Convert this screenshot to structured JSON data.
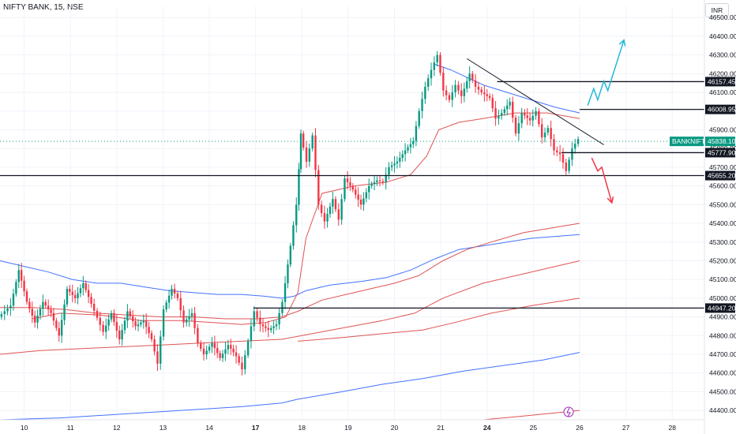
{
  "header": {
    "title": "NIFTY BANK, 15, NSE",
    "currency": "INR"
  },
  "chart_data": {
    "type": "candlestick",
    "symbol": "BANKNIFTY",
    "ylim": [
      44350,
      46560
    ],
    "yticks": [
      44400,
      44500,
      44600,
      44700,
      44800,
      44900,
      45000,
      45100,
      45200,
      45300,
      45400,
      45500,
      45600,
      45700,
      45800,
      45900,
      46000,
      46100,
      46200,
      46300,
      46400,
      46500
    ],
    "ytick_labels": [
      "44400.00",
      "44500.00",
      "44600.00",
      "44700.00",
      "44800.00",
      "44900.00",
      "45000.00",
      "45100.00",
      "45200.00",
      "45300.00",
      "45400.00",
      "45500.00",
      "45600.00",
      "45700.00",
      "45800.00",
      "45900.00",
      "46000.00",
      "46100.00",
      "46200.00",
      "46300.00",
      "46400.00",
      "46500.00"
    ],
    "xlim": [
      0,
      17.5
    ],
    "xticks": [
      {
        "pos": 0.6,
        "label": "10"
      },
      {
        "pos": 1.75,
        "label": "11"
      },
      {
        "pos": 2.9,
        "label": "12"
      },
      {
        "pos": 4.05,
        "label": "13"
      },
      {
        "pos": 5.2,
        "label": "14"
      },
      {
        "pos": 6.35,
        "label": "17",
        "bold": true
      },
      {
        "pos": 7.5,
        "label": "18"
      },
      {
        "pos": 8.65,
        "label": "19"
      },
      {
        "pos": 9.8,
        "label": "20"
      },
      {
        "pos": 10.95,
        "label": "21"
      },
      {
        "pos": 12.1,
        "label": "24",
        "bold": true
      },
      {
        "pos": 13.25,
        "label": "25"
      },
      {
        "pos": 14.4,
        "label": "26"
      },
      {
        "pos": 15.55,
        "label": "27"
      },
      {
        "pos": 16.7,
        "label": "28"
      }
    ],
    "price_segments": [
      [
        0.0,
        44900
      ],
      [
        0.3,
        44960
      ],
      [
        0.5,
        45150
      ],
      [
        0.7,
        44980
      ],
      [
        0.9,
        44870
      ],
      [
        1.1,
        44980
      ],
      [
        1.3,
        44920
      ],
      [
        1.5,
        44800
      ],
      [
        1.7,
        45050
      ],
      [
        1.9,
        45000
      ],
      [
        2.1,
        45080
      ],
      [
        2.3,
        44970
      ],
      [
        2.6,
        44820
      ],
      [
        2.8,
        44920
      ],
      [
        3.0,
        44780
      ],
      [
        3.2,
        44930
      ],
      [
        3.4,
        44850
      ],
      [
        3.6,
        44880
      ],
      [
        3.8,
        44780
      ],
      [
        3.95,
        44650
      ],
      [
        4.1,
        44940
      ],
      [
        4.3,
        45050
      ],
      [
        4.45,
        45000
      ],
      [
        4.6,
        44870
      ],
      [
        4.8,
        44920
      ],
      [
        4.95,
        44760
      ],
      [
        5.1,
        44700
      ],
      [
        5.3,
        44760
      ],
      [
        5.5,
        44680
      ],
      [
        5.7,
        44750
      ],
      [
        5.9,
        44690
      ],
      [
        6.05,
        44620
      ],
      [
        6.2,
        44770
      ],
      [
        6.35,
        44930
      ],
      [
        6.5,
        44860
      ],
      [
        6.7,
        44830
      ],
      [
        6.9,
        44860
      ],
      [
        7.05,
        44980
      ],
      [
        7.25,
        45280
      ],
      [
        7.4,
        45500
      ],
      [
        7.5,
        45880
      ],
      [
        7.65,
        45730
      ],
      [
        7.8,
        45870
      ],
      [
        7.95,
        45500
      ],
      [
        8.1,
        45410
      ],
      [
        8.3,
        45530
      ],
      [
        8.45,
        45420
      ],
      [
        8.6,
        45640
      ],
      [
        8.8,
        45580
      ],
      [
        9.0,
        45500
      ],
      [
        9.2,
        45600
      ],
      [
        9.4,
        45630
      ],
      [
        9.55,
        45620
      ],
      [
        9.7,
        45700
      ],
      [
        9.9,
        45730
      ],
      [
        10.1,
        45790
      ],
      [
        10.3,
        45840
      ],
      [
        10.45,
        46000
      ],
      [
        10.6,
        46130
      ],
      [
        10.75,
        46220
      ],
      [
        10.9,
        46300
      ],
      [
        11.05,
        46110
      ],
      [
        11.2,
        46060
      ],
      [
        11.35,
        46140
      ],
      [
        11.5,
        46080
      ],
      [
        11.7,
        46200
      ],
      [
        11.85,
        46130
      ],
      [
        12.0,
        46100
      ],
      [
        12.2,
        46070
      ],
      [
        12.35,
        45960
      ],
      [
        12.5,
        45990
      ],
      [
        12.7,
        46050
      ],
      [
        12.85,
        45880
      ],
      [
        13.0,
        45990
      ],
      [
        13.2,
        45950
      ],
      [
        13.35,
        46000
      ],
      [
        13.5,
        45860
      ],
      [
        13.65,
        45910
      ],
      [
        13.8,
        45790
      ],
      [
        13.95,
        45770
      ],
      [
        14.1,
        45680
      ],
      [
        14.25,
        45800
      ],
      [
        14.4,
        45850
      ]
    ],
    "lines": [
      {
        "name": "",
        "color": "#4472ff",
        "points": [
          [
            0,
            45200
          ],
          [
            0.6,
            45170
          ],
          [
            1.2,
            45140
          ],
          [
            1.8,
            45100
          ],
          [
            2.4,
            45080
          ],
          [
            3.0,
            45080
          ],
          [
            3.6,
            45060
          ],
          [
            4.2,
            45040
          ],
          [
            4.8,
            45030
          ],
          [
            5.4,
            45020
          ],
          [
            6.0,
            45020
          ],
          [
            6.6,
            45010
          ],
          [
            7.0,
            45000
          ],
          [
            7.3,
            45010
          ],
          [
            7.6,
            45040
          ],
          [
            8.2,
            45070
          ],
          [
            9.0,
            45090
          ],
          [
            9.6,
            45110
          ],
          [
            10.2,
            45150
          ],
          [
            10.8,
            45210
          ],
          [
            11.4,
            45260
          ],
          [
            12.0,
            45280
          ],
          [
            12.6,
            45300
          ],
          [
            13.2,
            45320
          ],
          [
            14.4,
            45340
          ]
        ]
      },
      {
        "name": "",
        "color": "#e05353",
        "points": [
          [
            0,
            44950
          ],
          [
            0.8,
            44950
          ],
          [
            1.6,
            44940
          ],
          [
            2.4,
            44920
          ],
          [
            3.2,
            44910
          ],
          [
            4.0,
            44900
          ],
          [
            4.8,
            44900
          ],
          [
            5.6,
            44890
          ],
          [
            6.4,
            44890
          ],
          [
            7.0,
            44900
          ],
          [
            7.4,
            44930
          ],
          [
            8.0,
            44990
          ],
          [
            9.0,
            45040
          ],
          [
            9.8,
            45080
          ],
          [
            10.4,
            45120
          ],
          [
            11.0,
            45200
          ],
          [
            11.6,
            45260
          ],
          [
            12.2,
            45300
          ],
          [
            13.0,
            45350
          ],
          [
            14.4,
            45400
          ]
        ]
      },
      {
        "name": "",
        "color": "#e05353",
        "points": [
          [
            0,
            44700
          ],
          [
            1.0,
            44720
          ],
          [
            2.0,
            44730
          ],
          [
            3.0,
            44740
          ],
          [
            4.0,
            44750
          ],
          [
            5.0,
            44760
          ],
          [
            6.0,
            44770
          ],
          [
            7.0,
            44780
          ],
          [
            7.5,
            44800
          ],
          [
            8.5,
            44840
          ],
          [
            9.5,
            44880
          ],
          [
            10.3,
            44920
          ],
          [
            11.0,
            45000
          ],
          [
            12.0,
            45080
          ],
          [
            13.0,
            45130
          ],
          [
            14.4,
            45200
          ]
        ]
      },
      {
        "name": "",
        "color": "#e05353",
        "points": [
          [
            7.4,
            44770
          ],
          [
            8.5,
            44790
          ],
          [
            9.5,
            44810
          ],
          [
            10.5,
            44830
          ],
          [
            11.3,
            44870
          ],
          [
            12.2,
            44920
          ],
          [
            13.2,
            44960
          ],
          [
            14.4,
            45000
          ]
        ]
      },
      {
        "name": "",
        "color": "#4472ff",
        "points": [
          [
            0,
            44350
          ],
          [
            1.5,
            44360
          ],
          [
            3.0,
            44380
          ],
          [
            4.5,
            44400
          ],
          [
            6.0,
            44420
          ],
          [
            7.0,
            44440
          ],
          [
            7.4,
            44460
          ],
          [
            8.5,
            44500
          ],
          [
            9.5,
            44540
          ],
          [
            10.5,
            44570
          ],
          [
            11.5,
            44610
          ],
          [
            12.5,
            44640
          ],
          [
            13.5,
            44670
          ],
          [
            14.4,
            44710
          ]
        ]
      },
      {
        "name": "",
        "color": "#e05353",
        "points": [
          [
            12.0,
            44350
          ],
          [
            13.0,
            44370
          ],
          [
            14.4,
            44400
          ]
        ]
      },
      {
        "name": "",
        "color": "#4472ff",
        "points": [
          [
            10.8,
            46250
          ],
          [
            11.2,
            46220
          ],
          [
            11.6,
            46180
          ],
          [
            12.0,
            46140
          ],
          [
            12.6,
            46100
          ],
          [
            13.2,
            46060
          ],
          [
            13.8,
            46020
          ],
          [
            14.4,
            45990
          ]
        ]
      },
      {
        "name": "",
        "color": "#e05353",
        "points": [
          [
            0.8,
            44890
          ],
          [
            1.5,
            44920
          ],
          [
            2.5,
            44910
          ],
          [
            3.5,
            44880
          ],
          [
            4.5,
            44880
          ],
          [
            5.3,
            44870
          ],
          [
            6.0,
            44860
          ],
          [
            6.6,
            44870
          ],
          [
            7.1,
            44900
          ],
          [
            7.4,
            45030
          ],
          [
            7.6,
            45320
          ],
          [
            8.0,
            45560
          ],
          [
            8.8,
            45600
          ],
          [
            9.6,
            45620
          ],
          [
            10.2,
            45660
          ],
          [
            10.6,
            45760
          ],
          [
            10.9,
            45900
          ],
          [
            11.4,
            45940
          ],
          [
            12.0,
            45960
          ],
          [
            12.8,
            45990
          ],
          [
            13.6,
            45990
          ],
          [
            14.4,
            45960
          ]
        ]
      }
    ],
    "level_lines": [
      {
        "value": 46157.45,
        "label": "46157.45",
        "x_start": 12.35
      },
      {
        "value": 46008.95,
        "label": "46008.95",
        "x_start": 14.4
      },
      {
        "value": 45777.9,
        "label": "45777.90",
        "x_start": 13.95
      },
      {
        "value": 45655.2,
        "label": "45655.20",
        "x_start": 0
      },
      {
        "value": 44947.2,
        "label": "44947.20",
        "x_start": 6.3
      }
    ],
    "current_price": {
      "value": 45838.1,
      "label": "45838.10",
      "symbol": "BANKNIFTY"
    },
    "trendline": {
      "from": [
        11.6,
        46280
      ],
      "to": [
        15.0,
        45820
      ]
    },
    "arrow_up": {
      "color": "#22b8d8",
      "points": [
        [
          14.6,
          46030
        ],
        [
          14.75,
          46120
        ],
        [
          14.85,
          46060
        ],
        [
          15.0,
          46160
        ],
        [
          15.1,
          46110
        ],
        [
          15.5,
          46380
        ]
      ]
    },
    "arrow_down": {
      "color": "#f23645",
      "points": [
        [
          14.7,
          45750
        ],
        [
          14.85,
          45680
        ],
        [
          14.95,
          45700
        ],
        [
          15.2,
          45510
        ]
      ]
    }
  }
}
